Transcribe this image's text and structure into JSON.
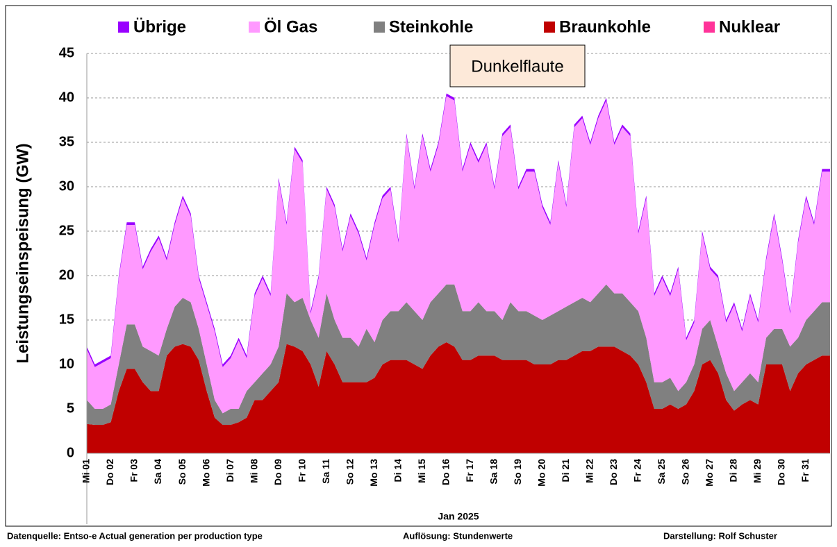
{
  "chart_data": {
    "type": "stacked-area",
    "ylabel": "Leistungseinspeisung (GW)",
    "xlabel": "Jan 2025",
    "annotation": "Dunkelflaute",
    "source": "Datenquelle: Entso-e  Actual generation per production type",
    "resolution": "Auflösung: Stundenwerte",
    "author": "Darstellung:  Rolf Schuster",
    "ylim": [
      0,
      45
    ],
    "yticks": [
      0,
      5,
      10,
      15,
      20,
      25,
      30,
      35,
      40,
      45
    ],
    "grid": true,
    "categories": [
      "Mi 01",
      null,
      null,
      "Do 02",
      null,
      null,
      "Fr 03",
      null,
      null,
      "Sa 04",
      null,
      null,
      "So 05",
      null,
      null,
      "Mo 06",
      null,
      null,
      "Di 07",
      null,
      null,
      "Mi 08",
      null,
      null,
      "Do 09",
      null,
      null,
      "Fr 10",
      null,
      null,
      "Sa 11",
      null,
      null,
      "So 12",
      null,
      null,
      "Mo 13",
      null,
      null,
      "Di 14",
      null,
      null,
      "Mi 15",
      null,
      null,
      "Do 16",
      null,
      null,
      "Fr 17",
      null,
      null,
      "Sa 18",
      null,
      null,
      "So 19",
      null,
      null,
      "Mo 20",
      null,
      null,
      "Di 21",
      null,
      null,
      "Mi 22",
      null,
      null,
      "Do 23",
      null,
      null,
      "Fr 24",
      null,
      null,
      "Sa 25",
      null,
      null,
      "So 26",
      null,
      null,
      "Mo 27",
      null,
      null,
      "Di 28",
      null,
      null,
      "Mi 29",
      null,
      null,
      "Do 30",
      null,
      null,
      "Fr 31",
      null,
      null
    ],
    "series": [
      {
        "name": "Übrige",
        "color": "#9900ff",
        "values": [
          0.3,
          0.3,
          0.3,
          0.3,
          0.3,
          0.3,
          0.3,
          0.3,
          0.3,
          0.3,
          0.3,
          0.3,
          0.3,
          0.3,
          0.3,
          0.3,
          0.3,
          0.3,
          0.3,
          0.3,
          0.3,
          0.3,
          0.3,
          0.3,
          0.3,
          0.3,
          0.3,
          0.3,
          0.3,
          0.3,
          0.3,
          0.3,
          0.3,
          0.3,
          0.3,
          0.3,
          0.3,
          0.3,
          0.3,
          0.3,
          0.3,
          0.3,
          0.3,
          0.3,
          0.3,
          0.3,
          0.3,
          0.3,
          0.3,
          0.3,
          0.3,
          0.3,
          0.3,
          0.3,
          0.3,
          0.3,
          0.3,
          0.3,
          0.3,
          0.3,
          0.3,
          0.3,
          0.3,
          0.3,
          0.3,
          0.3,
          0.3,
          0.3,
          0.3,
          0.3,
          0.3,
          0.3,
          0.3,
          0.3,
          0.3,
          0.3,
          0.3,
          0.3,
          0.3,
          0.3,
          0.3,
          0.3,
          0.3,
          0.3,
          0.3,
          0.3,
          0.3,
          0.3,
          0.3,
          0.3,
          0.3,
          0.3,
          0.3
        ]
      },
      {
        "name": "Öl Gas",
        "color": "#ff99ff",
        "values": [
          5.7,
          4.7,
          5.2,
          5.2,
          9.7,
          11.2,
          11.2,
          8.7,
          11.2,
          13.2,
          7.7,
          9.2,
          11.2,
          9.7,
          5.7,
          6.7,
          7.7,
          5.2,
          5.7,
          7.7,
          3.7,
          9.7,
          10.7,
          7.7,
          18.7,
          7.7,
          17.2,
          15.2,
          0.7,
          6.7,
          11.7,
          12.7,
          9.7,
          13.7,
          12.7,
          7.7,
          13.2,
          13.7,
          13.7,
          7.7,
          18.7,
          13.7,
          20.7,
          14.7,
          16.7,
          21.2,
          20.7,
          15.7,
          18.7,
          15.7,
          18.7,
          13.7,
          20.7,
          19.7,
          13.7,
          15.7,
          16.2,
          12.7,
          10.2,
          16.7,
          11.2,
          19.7,
          20.2,
          17.7,
          19.7,
          20.7,
          16.7,
          18.7,
          18.7,
          8.7,
          15.7,
          9.7,
          11.7,
          9.2,
          13.7,
          4.7,
          4.7,
          10.7,
          5.7,
          7.7,
          5.7,
          9.7,
          5.7,
          8.7,
          6.7,
          8.7,
          12.7,
          7.7,
          3.7,
          10.7,
          13.7,
          9.7,
          14.7
        ]
      },
      {
        "name": "Steinkohle",
        "color": "#808080",
        "values": [
          2.7,
          1.8,
          1.8,
          2,
          3,
          5,
          5,
          4,
          4.5,
          4,
          3,
          4.5,
          5.2,
          5,
          3.5,
          3,
          2,
          1.3,
          1.8,
          1.5,
          3,
          2,
          3,
          3,
          4,
          5.7,
          5,
          6,
          5,
          5.5,
          6.5,
          5,
          5,
          5,
          4,
          6,
          4,
          5,
          5.5,
          5.5,
          6.5,
          6,
          5.5,
          6,
          6,
          6.5,
          7,
          5.5,
          5.5,
          6,
          5,
          5,
          4.5,
          6.5,
          5.5,
          5.5,
          5.5,
          5,
          5.5,
          5.5,
          6,
          6,
          6,
          5.5,
          6,
          7,
          6,
          6.5,
          6,
          6,
          5,
          3,
          3,
          3,
          2,
          2.5,
          3,
          4,
          4.5,
          3,
          3,
          2.2,
          2.5,
          3,
          2.5,
          3,
          4,
          4,
          5,
          4,
          5,
          5.5,
          6
        ]
      },
      {
        "name": "Braunkohle",
        "color": "#c00000",
        "values": [
          3.3,
          3.2,
          3.2,
          3.5,
          7,
          9.5,
          9.5,
          8,
          7,
          7,
          11,
          12,
          12.3,
          12,
          10.5,
          7,
          4,
          3.2,
          3.2,
          3.5,
          4,
          6,
          6,
          7,
          8,
          12.3,
          12,
          11.5,
          10,
          7.5,
          11.5,
          10,
          8,
          8,
          8,
          8,
          8.5,
          10,
          10.5,
          10.5,
          10.5,
          10,
          9.5,
          11,
          12,
          12.5,
          12,
          10.5,
          10.5,
          11,
          11,
          11,
          10.5,
          10.5,
          10.5,
          10.5,
          10,
          10,
          10,
          10.5,
          10.5,
          11,
          11.5,
          11.5,
          12,
          12,
          12,
          11.5,
          11,
          10,
          8,
          5,
          5,
          5.5,
          5,
          5.5,
          7,
          10,
          10.5,
          9,
          6,
          4.8,
          5.5,
          6,
          5.5,
          10,
          10,
          10,
          7,
          9,
          10,
          10.5,
          11
        ]
      },
      {
        "name": "Nuklear",
        "color": "#ff3399",
        "values": [
          0,
          0,
          0,
          0,
          0,
          0,
          0,
          0,
          0,
          0,
          0,
          0,
          0,
          0,
          0,
          0,
          0,
          0,
          0,
          0,
          0,
          0,
          0,
          0,
          0,
          0,
          0,
          0,
          0,
          0,
          0,
          0,
          0,
          0,
          0,
          0,
          0,
          0,
          0,
          0,
          0,
          0,
          0,
          0,
          0,
          0,
          0,
          0,
          0,
          0,
          0,
          0,
          0,
          0,
          0,
          0,
          0,
          0,
          0,
          0,
          0,
          0,
          0,
          0,
          0,
          0,
          0,
          0,
          0,
          0,
          0,
          0,
          0,
          0,
          0,
          0,
          0,
          0,
          0,
          0,
          0,
          0,
          0,
          0,
          0,
          0,
          0,
          0,
          0,
          0,
          0,
          0,
          0
        ]
      }
    ]
  }
}
